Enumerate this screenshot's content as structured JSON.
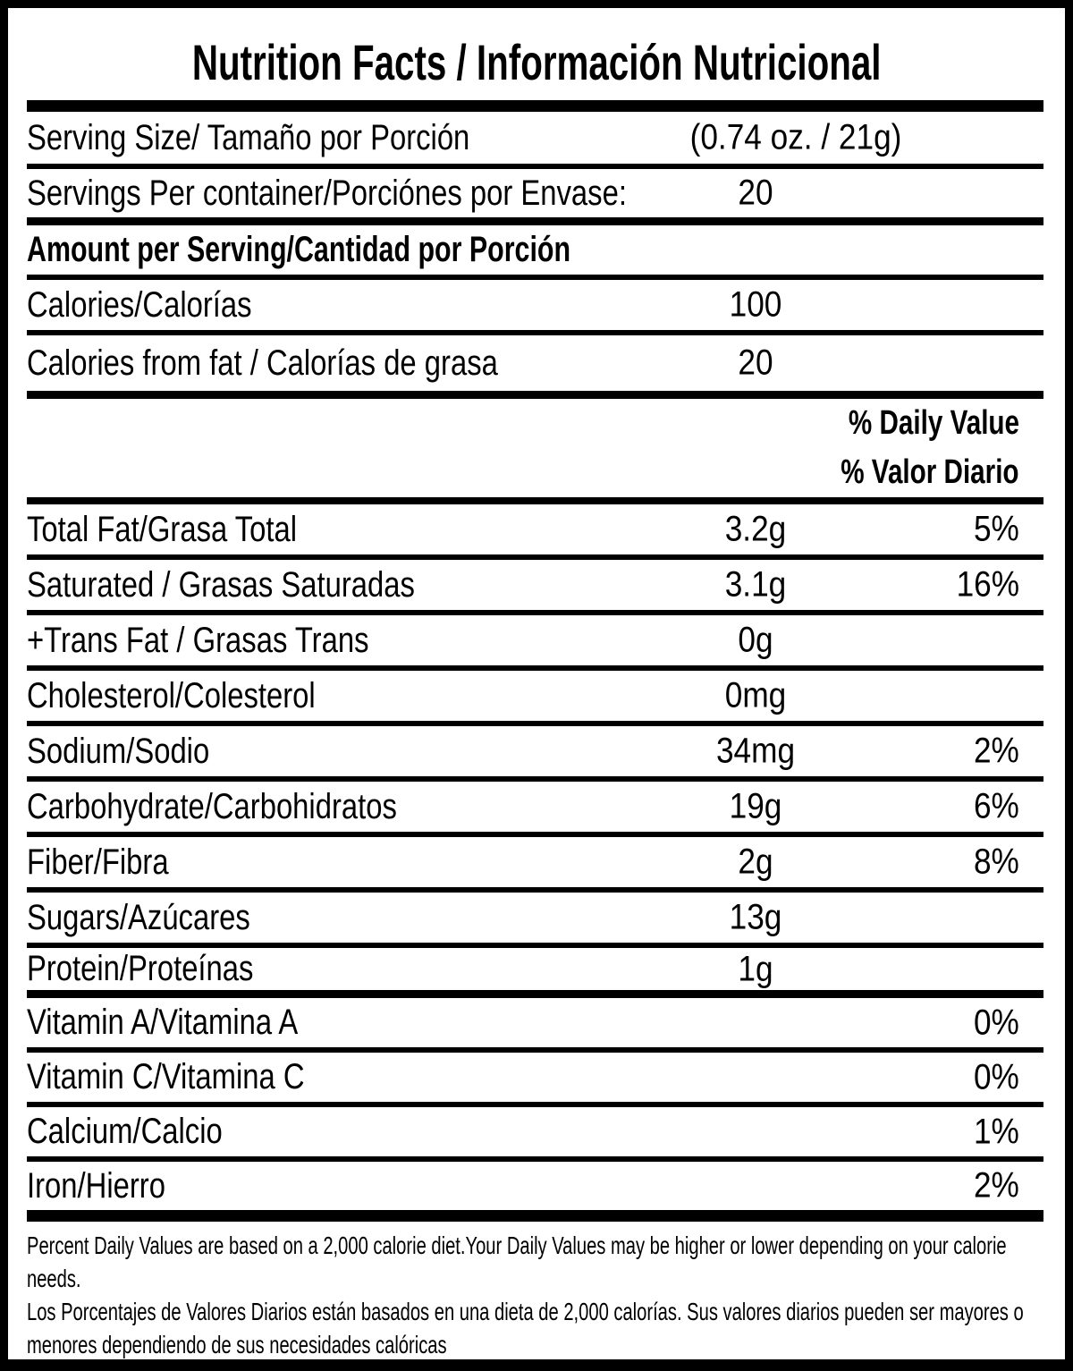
{
  "label": {
    "title": "Nutrition Facts / Información Nutricional",
    "serving_size": {
      "label": "Serving Size/ Tamaño por Porción",
      "value": "(0.74 oz. / 21g)"
    },
    "servings_per_container": {
      "label": "Servings Per container/Porciónes por Envase:",
      "value": "20"
    },
    "amount_per_serving_header": "Amount per Serving/Cantidad por Porción",
    "calories": {
      "label": "Calories/Calorías",
      "value": "100"
    },
    "calories_from_fat": {
      "label": "Calories from fat / Calorías de grasa",
      "value": "20"
    },
    "daily_value_header": {
      "line1": "% Daily Value",
      "line2": "% Valor Diario"
    },
    "nutrients": [
      {
        "label": "Total Fat/Grasa Total",
        "amount": "3.2g",
        "percent": "5%",
        "heavy_divider": false
      },
      {
        "label": "Saturated / Grasas Saturadas",
        "amount": "3.1g",
        "percent": "16%",
        "heavy_divider": false
      },
      {
        "label": "+Trans Fat / Grasas Trans",
        "amount": "0g",
        "percent": "",
        "heavy_divider": false
      },
      {
        "label": "Cholesterol/Colesterol",
        "amount": "0mg",
        "percent": "",
        "heavy_divider": false
      },
      {
        "label": "Sodium/Sodio",
        "amount": "34mg",
        "percent": "2%",
        "heavy_divider": false
      },
      {
        "label": "Carbohydrate/Carbohidratos",
        "amount": "19g",
        "percent": "6%",
        "heavy_divider": false
      },
      {
        "label": "Fiber/Fibra",
        "amount": "2g",
        "percent": "8%",
        "heavy_divider": false
      },
      {
        "label": "Sugars/Azúcares",
        "amount": "13g",
        "percent": "",
        "heavy_divider": false
      },
      {
        "label": "Protein/Proteínas",
        "amount": "1g",
        "percent": "",
        "heavy_divider": true
      },
      {
        "label": "Vitamin A/Vitamina A",
        "amount": "",
        "percent": "0%",
        "heavy_divider": false
      },
      {
        "label": "Vitamin C/Vitamina C",
        "amount": "",
        "percent": "0%",
        "heavy_divider": false
      },
      {
        "label": "Calcium/Calcio",
        "amount": "",
        "percent": "1%",
        "heavy_divider": false
      },
      {
        "label": "Iron/Hierro",
        "amount": "",
        "percent": "2%",
        "heavy_divider": false
      }
    ],
    "footnotes": [
      "Percent Daily Values are based on a 2,000 calorie diet.Your Daily Values may be higher or lower depending on your calorie needs.",
      "Los Porcentajes de Valores Diarios están basados en una dieta de 2,000 calorías. Sus valores diarios pueden ser mayores o menores dependiendo de sus necesidades calóricas"
    ],
    "colors": {
      "ink": "#000000",
      "paper": "#ffffff"
    }
  }
}
